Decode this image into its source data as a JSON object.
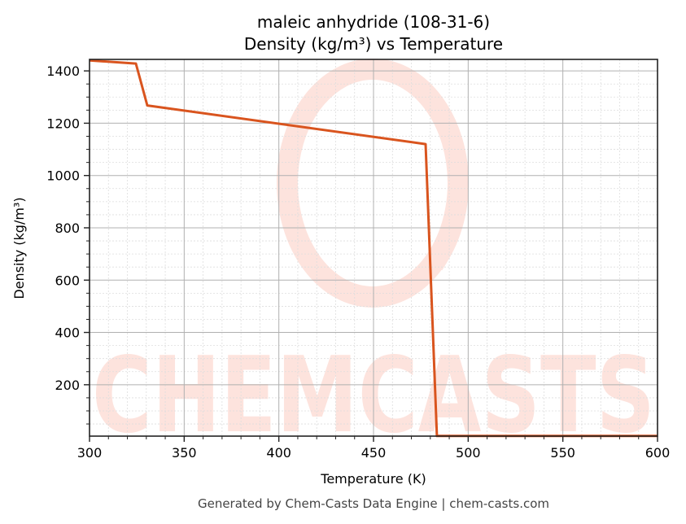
{
  "chart_data": {
    "type": "line",
    "title": "maleic anhydride (108-31-6)",
    "subtitle": "Density (kg/m³) vs Temperature",
    "xlabel": "Temperature (K)",
    "ylabel": "Density (kg/m³)",
    "xlim": [
      300,
      600
    ],
    "ylim": [
      3.5,
      1444
    ],
    "xticks": [
      300,
      350,
      400,
      450,
      500,
      550,
      600
    ],
    "yticks": [
      200,
      400,
      600,
      800,
      1000,
      1200,
      1400
    ],
    "grid": true,
    "minor_grid": true,
    "legend": null,
    "series": [
      {
        "name": "Density",
        "color": "#d9541e",
        "x": [
          300,
          324.5,
          330.5,
          477.5,
          483.5,
          600
        ],
        "y": [
          1440,
          1428,
          1268,
          1120,
          4,
          4
        ]
      }
    ]
  },
  "watermark": {
    "text": "CHEMCASTS",
    "color": "#fde3dd"
  },
  "footer": {
    "text": "Generated by Chem-Casts Data Engine | chem-casts.com"
  },
  "colors": {
    "line": "#d9541e",
    "major_grid": "#b0b0b0",
    "minor_grid": "#dddddd",
    "axes": "#222222"
  }
}
